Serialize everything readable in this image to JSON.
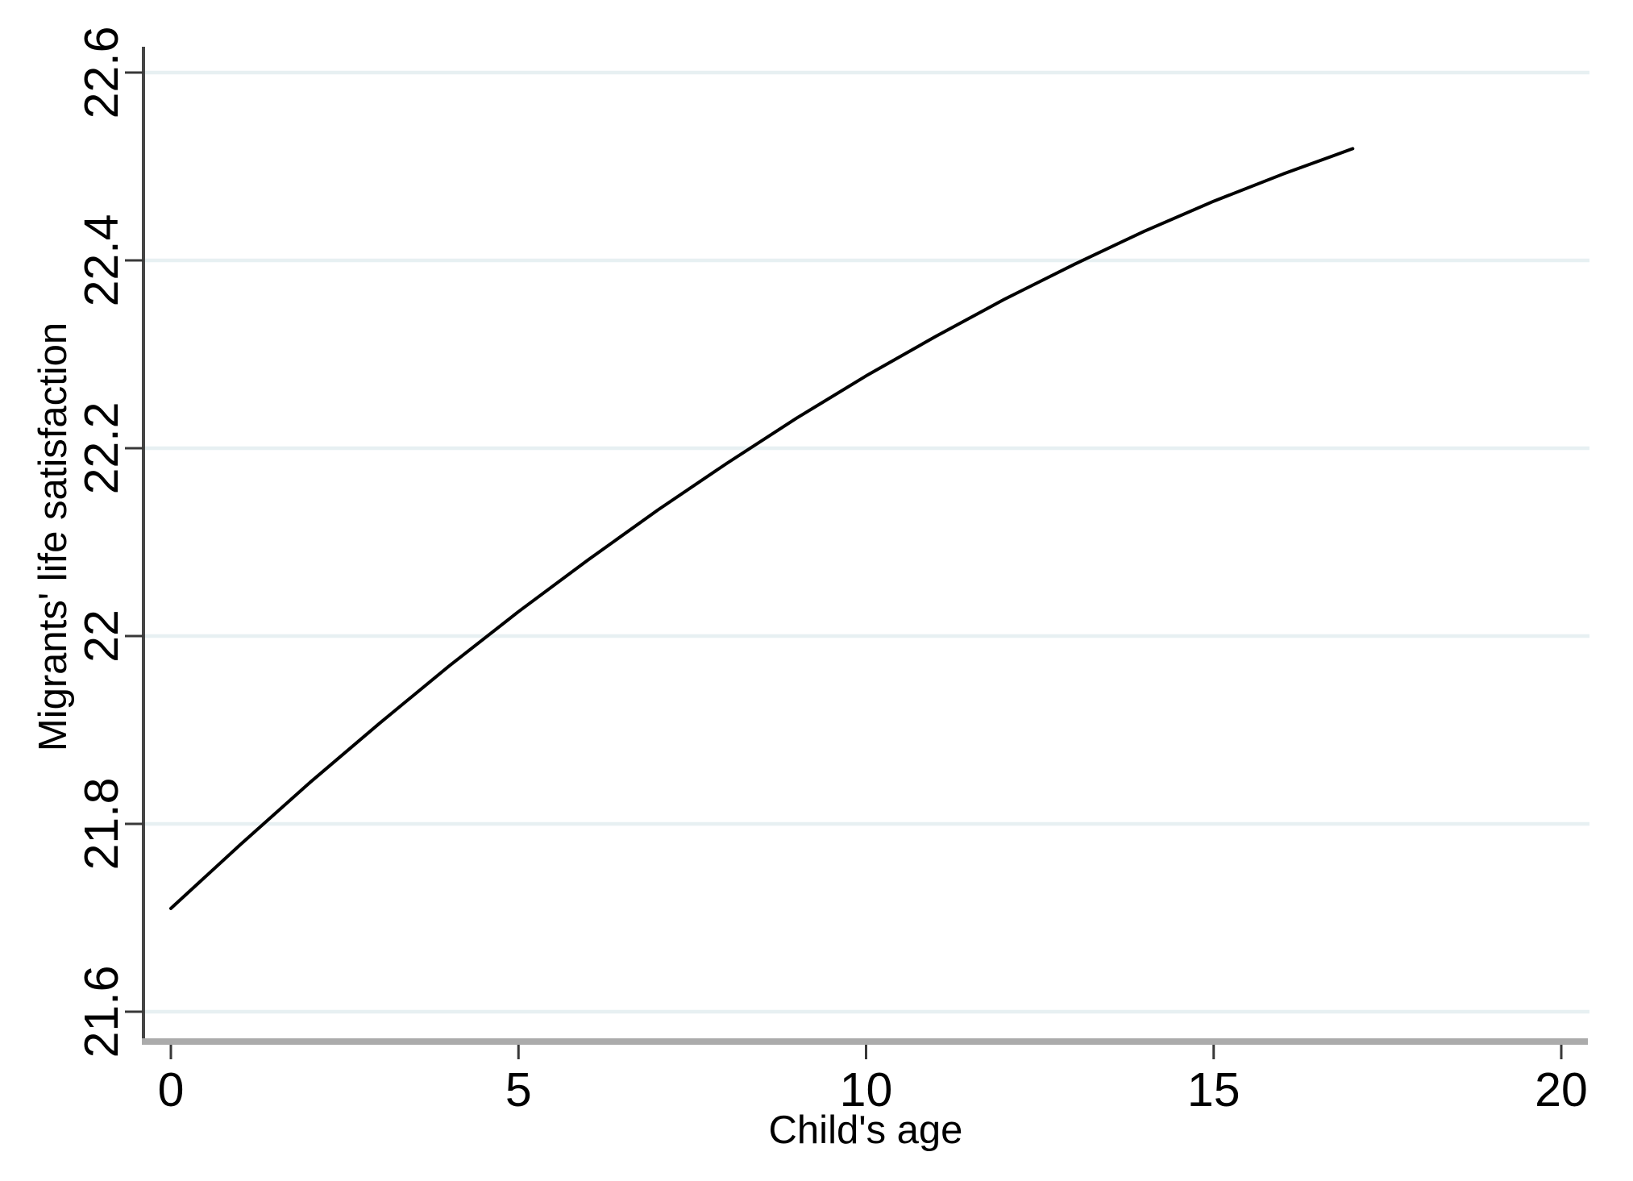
{
  "chart_data": {
    "type": "line",
    "title": "",
    "xlabel": "Child's age",
    "ylabel": "Migrants' life satisfaction",
    "xlim": [
      0,
      20
    ],
    "ylim": [
      21.6,
      22.6
    ],
    "x_ticks": [
      0,
      5,
      10,
      15,
      20
    ],
    "x_tick_labels": [
      "0",
      "5",
      "10",
      "15",
      "20"
    ],
    "y_ticks": [
      21.6,
      21.8,
      22,
      22.2,
      22.4,
      22.6
    ],
    "y_tick_labels": [
      "21.6",
      "21.8",
      "22",
      "22.2",
      "22.4",
      "22.6"
    ],
    "grid": "horizontal-only",
    "legend": "none",
    "series": [
      {
        "name": "migrants-life-satisfaction",
        "x": [
          0,
          1,
          2,
          3,
          4,
          5,
          6,
          7,
          8,
          9,
          10,
          11,
          12,
          13,
          14,
          15,
          16,
          17
        ],
        "y": [
          21.71,
          21.778,
          21.844,
          21.907,
          21.968,
          22.026,
          22.081,
          22.134,
          22.184,
          22.232,
          22.277,
          22.319,
          22.359,
          22.396,
          22.431,
          22.463,
          22.492,
          22.519
        ]
      }
    ],
    "colors": {
      "line": "#000000",
      "grid": "#e7f0f2",
      "y_axis": "#454545",
      "x_axis": "#ababab",
      "tick": "#383838",
      "text": "#000000"
    }
  }
}
